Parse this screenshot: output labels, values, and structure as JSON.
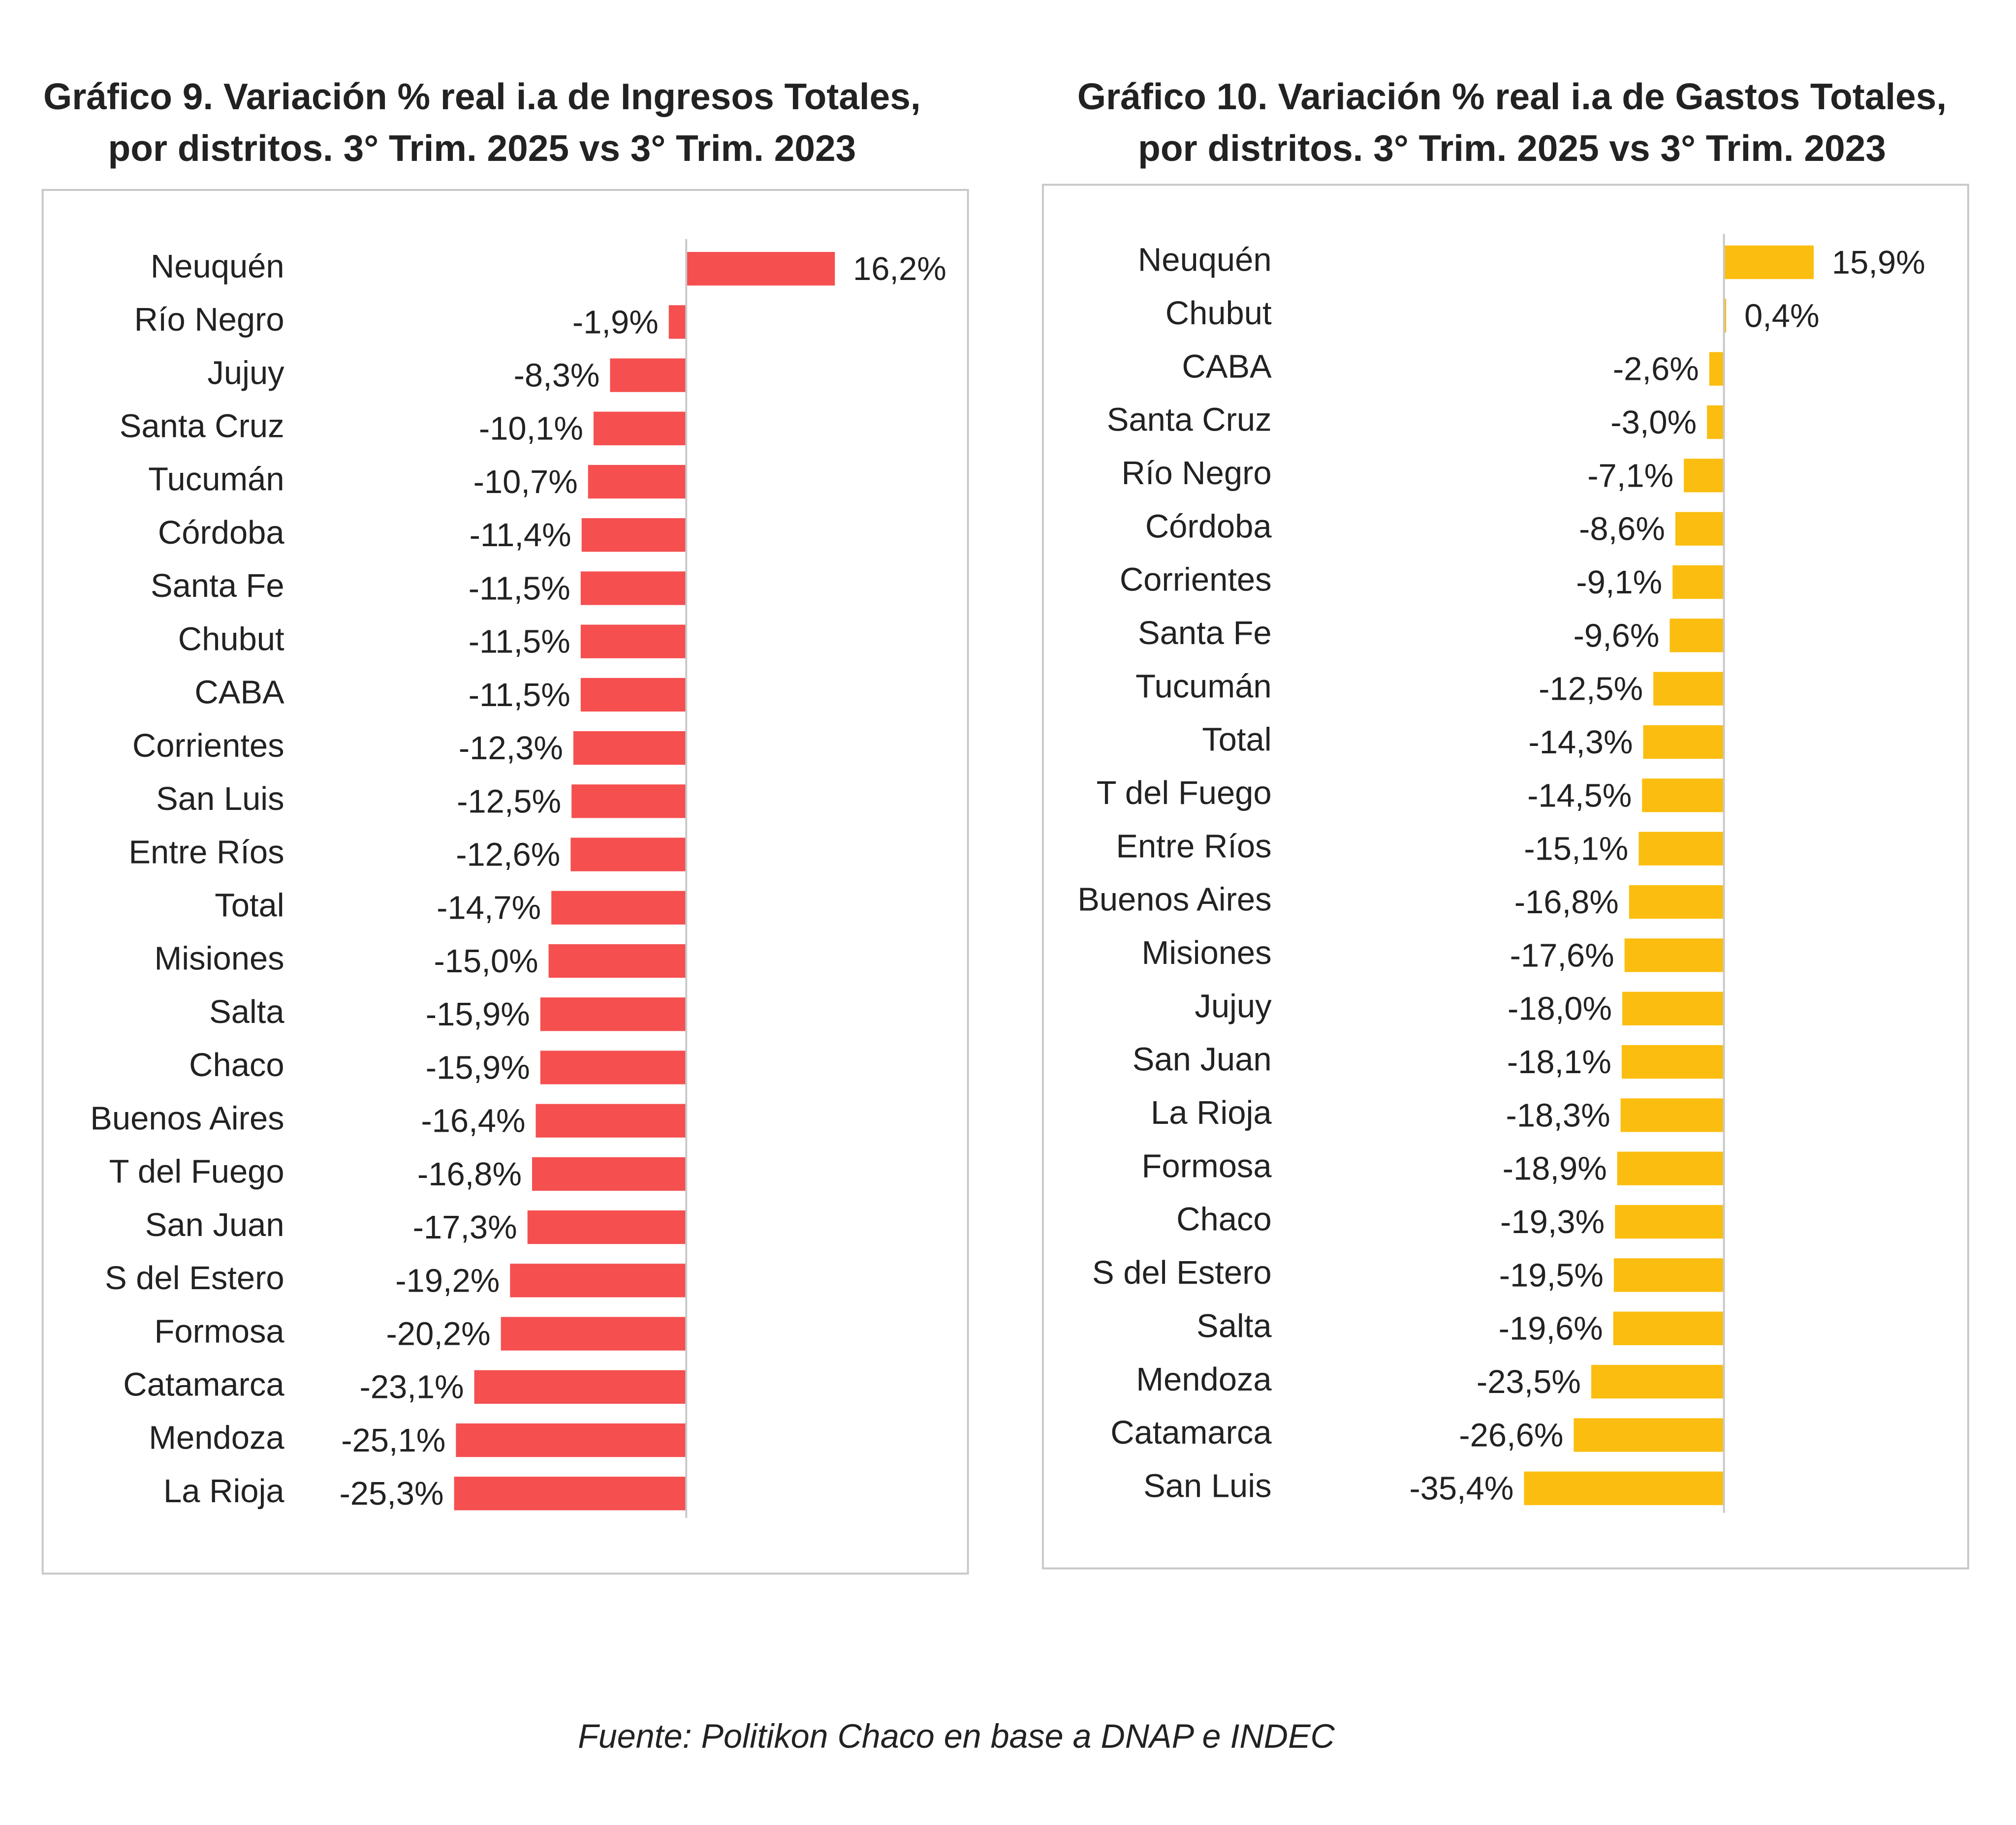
{
  "chart_data": [
    {
      "type": "bar",
      "orientation": "horizontal",
      "title": [
        "Gráfico 9. Variación % real i.a de Ingresos Totales,",
        "por distritos. 3° Trim. 2025 vs 3° Trim. 2023"
      ],
      "categories": [
        "Neuquén",
        "Río Negro",
        "Jujuy",
        "Santa Cruz",
        "Tucumán",
        "Córdoba",
        "Santa Fe",
        "Chubut",
        "CABA",
        "Corrientes",
        "San Luis",
        "Entre Ríos",
        "Total",
        "Misiones",
        "Salta",
        "Chaco",
        "Buenos Aires",
        "T del Fuego",
        "San Juan",
        "S del Estero",
        "Formosa",
        "Catamarca",
        "Mendoza",
        "La Rioja"
      ],
      "values": [
        16.2,
        -1.9,
        -8.3,
        -10.1,
        -10.7,
        -11.4,
        -11.5,
        -11.5,
        -11.5,
        -12.3,
        -12.5,
        -12.6,
        -14.7,
        -15.0,
        -15.9,
        -15.9,
        -16.4,
        -16.8,
        -17.3,
        -19.2,
        -20.2,
        -23.1,
        -25.1,
        -25.3
      ],
      "value_labels": [
        "16,2%",
        "-1,9%",
        "-8,3%",
        "-10,1%",
        "-10,7%",
        "-11,4%",
        "-11,5%",
        "-11,5%",
        "-11,5%",
        "-12,3%",
        "-12,5%",
        "-12,6%",
        "-14,7%",
        "-15,0%",
        "-15,9%",
        "-15,9%",
        "-16,4%",
        "-16,8%",
        "-17,3%",
        "-19,2%",
        "-20,2%",
        "-23,1%",
        "-25,1%",
        "-25,3%"
      ],
      "color": "#f54f4f",
      "xlim": [
        -30,
        20
      ]
    },
    {
      "type": "bar",
      "orientation": "horizontal",
      "title": [
        "Gráfico 10. Variación % real i.a de Gastos Totales,",
        "por distritos. 3° Trim. 2025 vs 3° Trim. 2023"
      ],
      "categories": [
        "Neuquén",
        "Chubut",
        "CABA",
        "Santa Cruz",
        "Río Negro",
        "Córdoba",
        "Corrientes",
        "Santa Fe",
        "Tucumán",
        "Total",
        "T del Fuego",
        "Entre Ríos",
        "Buenos Aires",
        "Misiones",
        "Jujuy",
        "San Juan",
        "La Rioja",
        "Formosa",
        "Chaco",
        "S del Estero",
        "Salta",
        "Mendoza",
        "Catamarca",
        "San Luis"
      ],
      "values": [
        15.9,
        0.4,
        -2.6,
        -3.0,
        -7.1,
        -8.6,
        -9.1,
        -9.6,
        -12.5,
        -14.3,
        -14.5,
        -15.1,
        -16.8,
        -17.6,
        -18.0,
        -18.1,
        -18.3,
        -18.9,
        -19.3,
        -19.5,
        -19.6,
        -23.5,
        -26.6,
        -35.4
      ],
      "value_labels": [
        "15,9%",
        "0,4%",
        "-2,6%",
        "-3,0%",
        "-7,1%",
        "-8,6%",
        "-9,1%",
        "-9,6%",
        "-12,5%",
        "-14,3%",
        "-14,5%",
        "-15,1%",
        "-16,8%",
        "-17,6%",
        "-18,0%",
        "-18,1%",
        "-18,3%",
        "-18,9%",
        "-19,3%",
        "-19,5%",
        "-19,6%",
        "-23,5%",
        "-26,6%",
        "-35,4%"
      ],
      "color": "#fbbd0f",
      "xlim": [
        -40,
        20
      ]
    }
  ],
  "source": "Fuente: Politikon Chaco en base a DNAP e INDEC"
}
